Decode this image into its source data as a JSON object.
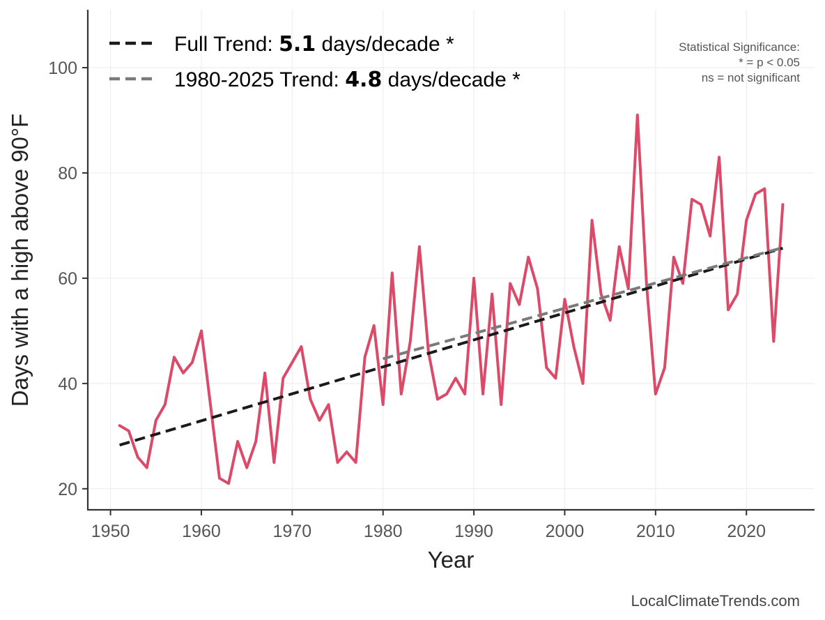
{
  "chart_data": {
    "type": "line",
    "xlabel": "Year",
    "ylabel": "Days with a high above 90°F",
    "xlim": [
      1947.5,
      2027.5
    ],
    "ylim": [
      16,
      111
    ],
    "xticks": [
      1950,
      1960,
      1970,
      1980,
      1990,
      2000,
      2010,
      2020
    ],
    "xtick_labels": [
      "1950",
      "1960",
      "1970",
      "1980",
      "1990",
      "2000",
      "2010",
      "2020"
    ],
    "yticks": [
      20,
      40,
      60,
      80,
      100
    ],
    "ytick_labels": [
      "20",
      "40",
      "60",
      "80",
      "100"
    ],
    "grid": true,
    "series": [
      {
        "name": "Days above 90°F",
        "color": "#dc4a6a",
        "x": [
          1951,
          1952,
          1953,
          1954,
          1955,
          1956,
          1957,
          1958,
          1959,
          1960,
          1961,
          1962,
          1963,
          1964,
          1965,
          1966,
          1967,
          1968,
          1969,
          1970,
          1971,
          1972,
          1973,
          1974,
          1975,
          1976,
          1977,
          1978,
          1979,
          1980,
          1981,
          1982,
          1983,
          1984,
          1985,
          1986,
          1987,
          1988,
          1989,
          1990,
          1991,
          1992,
          1993,
          1994,
          1995,
          1996,
          1997,
          1998,
          1999,
          2000,
          2001,
          2002,
          2003,
          2004,
          2005,
          2006,
          2007,
          2008,
          2009,
          2010,
          2011,
          2012,
          2013,
          2014,
          2015,
          2016,
          2017,
          2018,
          2019,
          2020,
          2021,
          2022,
          2023,
          2024
        ],
        "values": [
          32,
          31,
          26,
          24,
          33,
          36,
          45,
          42,
          44,
          50,
          36,
          22,
          21,
          29,
          24,
          29,
          42,
          25,
          41,
          44,
          47,
          37,
          33,
          36,
          25,
          27,
          25,
          45,
          51,
          36,
          61,
          38,
          48,
          66,
          46,
          37,
          38,
          41,
          38,
          60,
          38,
          57,
          36,
          59,
          55,
          64,
          58,
          43,
          41,
          56,
          47,
          40,
          71,
          57,
          52,
          66,
          58,
          91,
          59,
          38,
          43,
          64,
          59,
          75,
          74,
          68,
          83,
          54,
          57,
          71,
          76,
          77,
          48,
          74
        ]
      }
    ],
    "trends": [
      {
        "name": "Full Trend",
        "color": "#1a1a1a",
        "x": [
          1951,
          2024
        ],
        "values": [
          28.3,
          65.7
        ],
        "label_prefix": "Full Trend: ",
        "label_value": "5.1",
        "label_suffix": " days/decade *"
      },
      {
        "name": "1980-2025 Trend",
        "color": "#7a7a7a",
        "x": [
          1980,
          2024
        ],
        "values": [
          44.7,
          65.8
        ],
        "label_prefix": "1980-2025 Trend: ",
        "label_value": "4.8",
        "label_suffix": " days/decade *"
      }
    ],
    "significance_note": [
      "Statistical Significance:",
      "* = p < 0.05",
      "ns = not significant"
    ],
    "source": "LocalClimateTrends.com"
  }
}
